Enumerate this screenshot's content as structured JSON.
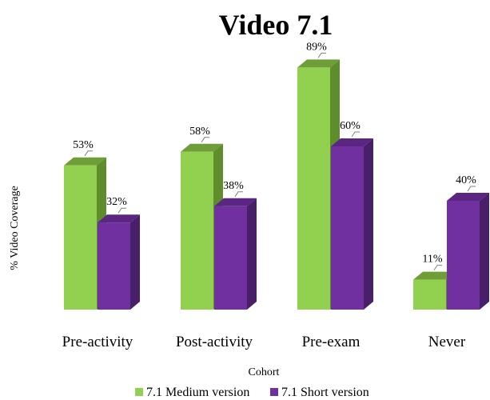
{
  "chart_data": {
    "type": "bar",
    "style": "3d-clustered-column",
    "title": "Video 7.1",
    "xlabel": "Cohort",
    "ylabel": "% Video Coverage",
    "categories": [
      "Pre-activity",
      "Post-activity",
      "Pre-exam",
      "Never"
    ],
    "series": [
      {
        "name": "7.1 Medium version",
        "values": [
          53,
          58,
          89,
          11
        ],
        "labels": [
          "53%",
          "58%",
          "89%",
          "11%"
        ]
      },
      {
        "name": "7.1 Short version",
        "values": [
          32,
          38,
          60,
          40
        ],
        "labels": [
          "32%",
          "38%",
          "60%",
          "40%"
        ]
      }
    ],
    "ylim": [
      0,
      100
    ],
    "grid": false,
    "legend_position": "bottom"
  },
  "colors": {
    "medium_front": "#92d050",
    "medium_side": "#5f8c2c",
    "medium_top": "#6f9e38",
    "short_front": "#7030a0",
    "short_side": "#4a1f6a",
    "short_top": "#5a2682",
    "leader": "#808080"
  }
}
